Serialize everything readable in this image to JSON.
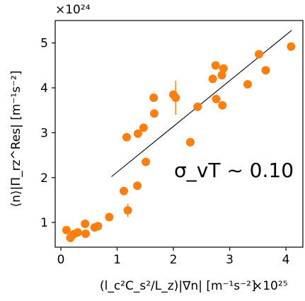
{
  "chart_data": {
    "type": "scatter",
    "title": "",
    "xlabel_main": "(l_c²C_s²/L_z)|∇n| [m⁻¹s⁻²]",
    "ylabel": "⟨n⟩|Π_rz^Res| [m⁻¹s⁻²]",
    "x_exponent_label": "×10²⁵",
    "y_exponent_label": "×10²⁴",
    "x_scale": "1e25",
    "y_scale": "1e24",
    "xlim": [
      -0.1,
      4.3
    ],
    "ylim": [
      0.45,
      5.5
    ],
    "x_ticks": [
      0,
      1,
      2,
      3,
      4
    ],
    "x_tick_labels": [
      "0",
      "1",
      "2",
      "3",
      "4"
    ],
    "y_ticks": [
      1,
      2,
      3,
      4,
      5
    ],
    "y_tick_labels": [
      "1",
      "2",
      "3",
      "4",
      "5"
    ],
    "grid": false,
    "annotation": "σ_vT ~ 0.10",
    "point_color": "#ff7f0e",
    "line_color": "#000000",
    "fit_line": {
      "x": [
        0.9,
        4.1
      ],
      "y": [
        2.02,
        5.28
      ]
    },
    "series": [
      {
        "points": [
          {
            "x": 0.1,
            "y": 0.83
          },
          {
            "x": 0.17,
            "y": 0.66
          },
          {
            "x": 0.23,
            "y": 0.74
          },
          {
            "x": 0.3,
            "y": 0.78
          },
          {
            "x": 0.43,
            "y": 0.97
          },
          {
            "x": 0.44,
            "y": 0.75
          },
          {
            "x": 0.6,
            "y": 0.89
          },
          {
            "x": 0.66,
            "y": 0.92
          },
          {
            "x": 0.86,
            "y": 1.12
          },
          {
            "x": 1.12,
            "y": 1.7
          },
          {
            "x": 1.17,
            "y": 2.9
          },
          {
            "x": 1.19,
            "y": 1.27,
            "err": 0.15
          },
          {
            "x": 1.36,
            "y": 1.82
          },
          {
            "x": 1.37,
            "y": 2.98
          },
          {
            "x": 1.47,
            "y": 3.11
          },
          {
            "x": 1.51,
            "y": 2.35
          },
          {
            "x": 1.65,
            "y": 3.78
          },
          {
            "x": 1.66,
            "y": 3.43
          },
          {
            "x": 2.0,
            "y": 3.85
          },
          {
            "x": 2.04,
            "y": 3.78,
            "err": 0.38
          },
          {
            "x": 2.3,
            "y": 2.79
          },
          {
            "x": 2.43,
            "y": 3.58
          },
          {
            "x": 2.7,
            "y": 4.2
          },
          {
            "x": 2.75,
            "y": 4.5
          },
          {
            "x": 2.76,
            "y": 3.75
          },
          {
            "x": 2.86,
            "y": 4.28
          },
          {
            "x": 2.87,
            "y": 3.61
          },
          {
            "x": 2.89,
            "y": 4.43
          },
          {
            "x": 3.32,
            "y": 4.08
          },
          {
            "x": 3.52,
            "y": 4.75
          },
          {
            "x": 3.64,
            "y": 4.39
          },
          {
            "x": 4.09,
            "y": 4.92
          }
        ]
      }
    ]
  }
}
